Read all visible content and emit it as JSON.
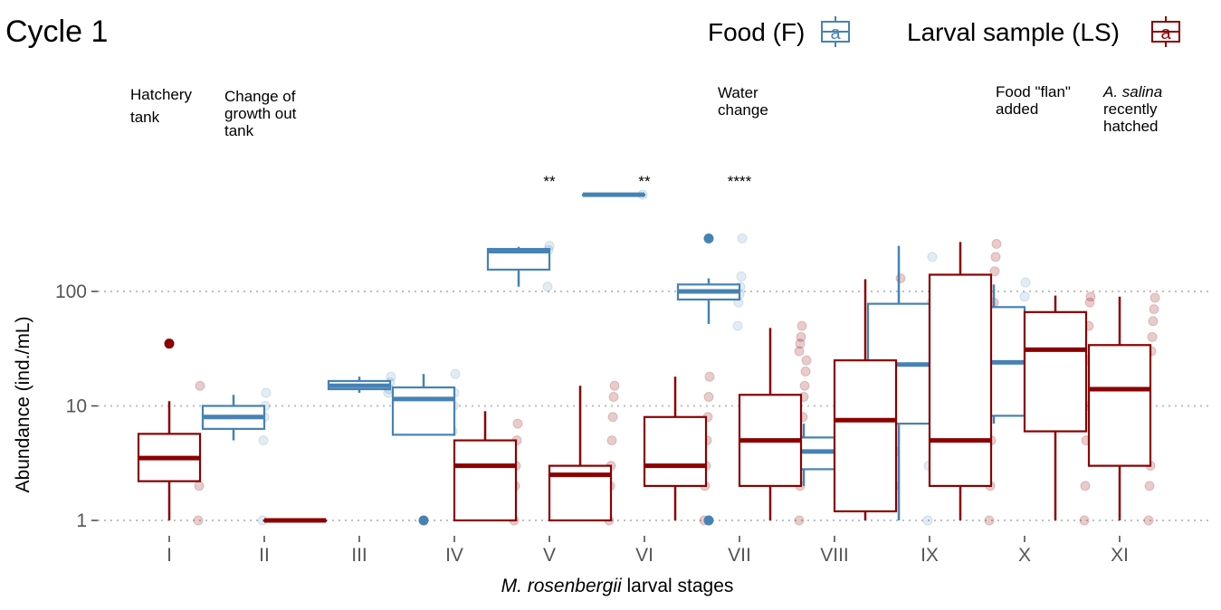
{
  "chart_data": {
    "type": "box",
    "title": "Cycle 1",
    "xlabel_italic": "M. rosenbergii",
    "xlabel_rest": " larval stages",
    "ylabel": "Abundance (ind./mL)",
    "yscale": "log10",
    "ylim": [
      0.85,
      1300
    ],
    "yticks": [
      1,
      10,
      100
    ],
    "ytick_labels": [
      "1",
      "10",
      "100"
    ],
    "grid_y": true,
    "categories": [
      "I",
      "II",
      "III",
      "IV",
      "V",
      "VI",
      "VII",
      "VIII",
      "IX",
      "X",
      "XI"
    ],
    "legend": {
      "placement": "top-right",
      "glyph_letter": "a",
      "entries": [
        {
          "label": "Food (F)",
          "color": "#4682b4"
        },
        {
          "label": "Larval sample (LS)",
          "color": "#8b0000"
        }
      ]
    },
    "series": [
      {
        "name": "Food (F)",
        "color": "#4682b4",
        "boxes": [
          {
            "stage": "II",
            "q1": 6.3,
            "median": 8.0,
            "q3": 10.0,
            "whisker_low": 5.0,
            "whisker_high": 12.5,
            "outliers": [],
            "points": [
              1,
              5,
              8,
              10,
              13
            ]
          },
          {
            "stage": "III",
            "q1": 14.0,
            "median": 15.0,
            "q3": 16.5,
            "whisker_low": 13.0,
            "whisker_high": 18.0,
            "outliers": [],
            "points": [
              13,
              14,
              16,
              18
            ]
          },
          {
            "stage": "IV",
            "q1": 5.6,
            "median": 11.5,
            "q3": 14.5,
            "whisker_low": 5.6,
            "whisker_high": 19.0,
            "outliers": [
              1
            ],
            "points": [
              6,
              10,
              13,
              19
            ]
          },
          {
            "stage": "V",
            "q1": 155,
            "median": 225,
            "q3": 235,
            "whisker_low": 110,
            "whisker_high": 245,
            "outliers": [],
            "points": [
              110,
              230,
              250
            ]
          },
          {
            "stage": "VI",
            "q1": 700,
            "median": 700,
            "q3": 700,
            "whisker_low": 700,
            "whisker_high": 700,
            "outliers": [],
            "points": [
              700
            ]
          },
          {
            "stage": "VII",
            "q1": 85,
            "median": 100,
            "q3": 115,
            "whisker_low": 52,
            "whisker_high": 130,
            "outliers": [
              1,
              290
            ],
            "points": [
              50,
              80,
              95,
              110,
              135,
              290
            ]
          },
          {
            "stage": "VIII",
            "q1": 2.8,
            "median": 4.0,
            "q3": 5.3,
            "whisker_low": 2.0,
            "whisker_high": 7.0,
            "outliers": [],
            "points": []
          },
          {
            "stage": "IX",
            "q1": 7.0,
            "median": 23,
            "q3": 78,
            "whisker_low": 1,
            "whisker_high": 250,
            "outliers": [],
            "points": [
              1,
              3,
              10,
              30,
              80,
              200
            ]
          },
          {
            "stage": "X",
            "q1": 8.2,
            "median": 24,
            "q3": 73,
            "whisker_low": 7.0,
            "whisker_high": 115,
            "outliers": [],
            "points": [
              12,
              40,
              90,
              120
            ]
          }
        ]
      },
      {
        "name": "Larval sample (LS)",
        "color": "#8b0000",
        "boxes": [
          {
            "stage": "I",
            "q1": 2.2,
            "median": 3.5,
            "q3": 5.7,
            "whisker_low": 1.0,
            "whisker_high": 11.0,
            "outliers": [
              35
            ],
            "points": [
              1,
              2,
              15
            ]
          },
          {
            "stage": "II",
            "q1": 1.0,
            "median": 1.0,
            "q3": 1.0,
            "whisker_low": 1.0,
            "whisker_high": 1.0,
            "outliers": [],
            "points": []
          },
          {
            "stage": "IV",
            "q1": 1.0,
            "median": 3.0,
            "q3": 5.0,
            "whisker_low": 1.0,
            "whisker_high": 9.0,
            "outliers": [],
            "points": [
              1,
              2,
              3,
              5,
              7
            ]
          },
          {
            "stage": "V",
            "q1": 1.0,
            "median": 2.5,
            "q3": 3.0,
            "whisker_low": 1.0,
            "whisker_high": 15.0,
            "outliers": [],
            "points": [
              1,
              2,
              3,
              5,
              8,
              12,
              15
            ]
          },
          {
            "stage": "VI",
            "q1": 2.0,
            "median": 3.0,
            "q3": 8.0,
            "whisker_low": 1.0,
            "whisker_high": 18.0,
            "outliers": [],
            "points": [
              1,
              2,
              3,
              5,
              8,
              12,
              18
            ]
          },
          {
            "stage": "VII",
            "q1": 2.0,
            "median": 5.0,
            "q3": 12.5,
            "whisker_low": 1.0,
            "whisker_high": 48.0,
            "outliers": [],
            "points": [
              1,
              2,
              3,
              5,
              8,
              12,
              15,
              20,
              25,
              30,
              35,
              40,
              50
            ]
          },
          {
            "stage": "VIII",
            "q1": 1.2,
            "median": 7.5,
            "q3": 25.0,
            "whisker_low": 1.0,
            "whisker_high": 128,
            "outliers": [],
            "points": [
              2,
              4,
              8,
              12,
              20,
              35,
              60,
              130
            ]
          },
          {
            "stage": "IX",
            "q1": 2.0,
            "median": 5.0,
            "q3": 140,
            "whisker_low": 1.0,
            "whisker_high": 270,
            "outliers": [],
            "points": [
              1,
              2,
              5,
              10,
              30,
              80,
              150,
              200,
              260
            ]
          },
          {
            "stage": "X",
            "q1": 6.0,
            "median": 31,
            "q3": 66,
            "whisker_low": 1.0,
            "whisker_high": 92,
            "outliers": [],
            "points": [
              1,
              2,
              5,
              10,
              25,
              50,
              80,
              90
            ]
          },
          {
            "stage": "XI",
            "q1": 3.0,
            "median": 14,
            "q3": 34,
            "whisker_low": 1.0,
            "whisker_high": 90,
            "outliers": [],
            "points": [
              1,
              2,
              3,
              30,
              40,
              55,
              70,
              88
            ]
          }
        ]
      }
    ],
    "significance": [
      {
        "stage": "V",
        "label": "**"
      },
      {
        "stage": "VI",
        "label": "**"
      },
      {
        "stage": "VII",
        "label": "****"
      }
    ],
    "annotations": [
      {
        "stage": "I",
        "lines": [
          "Hatchery",
          "tank"
        ],
        "italic_first_word": false
      },
      {
        "stage": "II",
        "lines": [
          "Change of",
          "growth out",
          "tank"
        ],
        "italic_first_word": false
      },
      {
        "stage": "VII",
        "lines": [
          "Water",
          "change"
        ],
        "italic_first_word": false
      },
      {
        "stage": "X",
        "lines": [
          "Food \"flan\"",
          "added"
        ],
        "italic_first_word": false
      },
      {
        "stage": "XI",
        "lines": [
          "A. salina",
          "recently",
          "hatched"
        ],
        "italic_first_word": true
      }
    ]
  }
}
